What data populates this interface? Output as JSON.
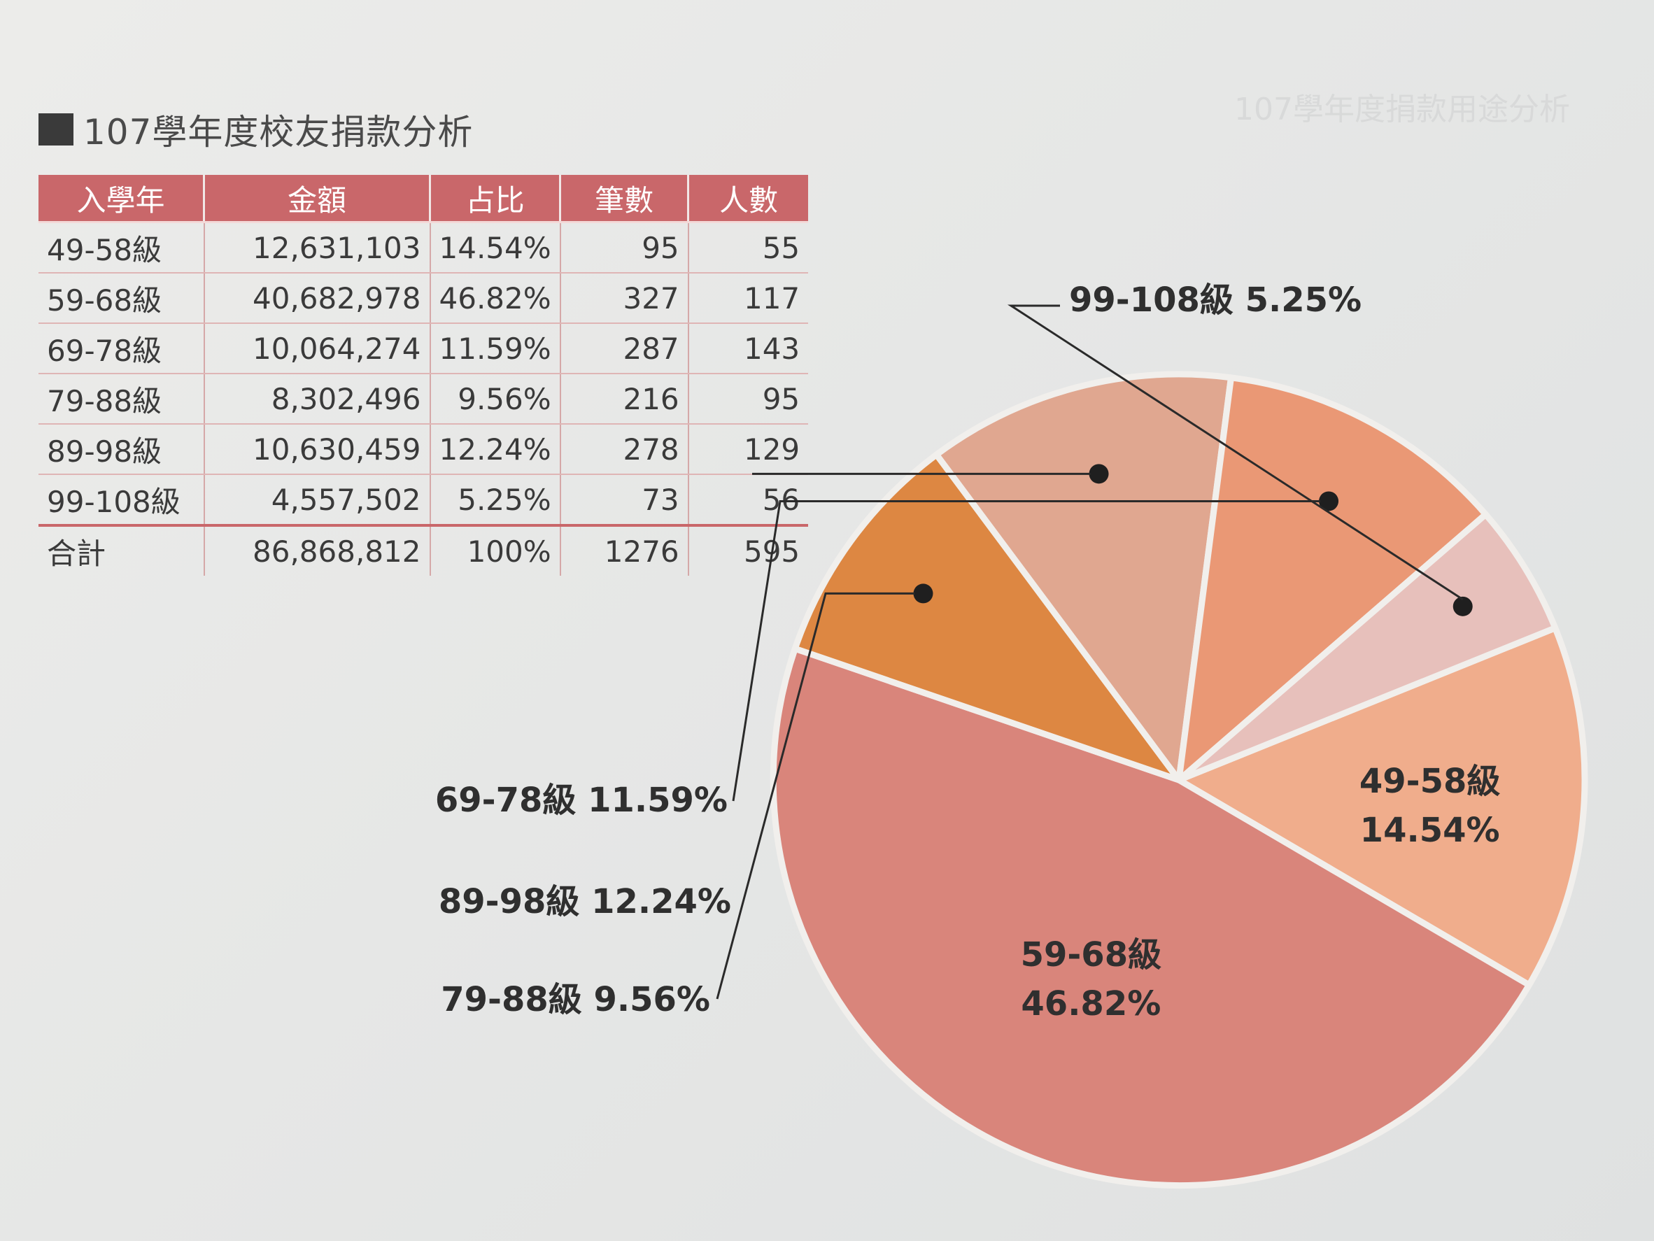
{
  "title": "107學年度校友捐款分析",
  "ghost_title": "107學年度捐款用途分析",
  "table": {
    "headers": [
      "入學年",
      "金額",
      "占比",
      "筆數",
      "人數"
    ],
    "rows": [
      [
        "49-58級",
        "12,631,103",
        "14.54%",
        "95",
        "55"
      ],
      [
        "59-68級",
        "40,682,978",
        "46.82%",
        "327",
        "117"
      ],
      [
        "69-78級",
        "10,064,274",
        "11.59%",
        "287",
        "143"
      ],
      [
        "79-88級",
        "8,302,496",
        "9.56%",
        "216",
        "95"
      ],
      [
        "89-98級",
        "10,630,459",
        "12.24%",
        "278",
        "129"
      ],
      [
        "99-108級",
        "4,557,502",
        "5.25%",
        "73",
        "56"
      ]
    ],
    "total": [
      "合計",
      "86,868,812",
      "100%",
      "1276",
      "595"
    ]
  },
  "chart_data": {
    "type": "pie",
    "slices": [
      {
        "label": "49-58級",
        "percent_label": "14.54%",
        "value": 14.54,
        "color": "#f0ad8c"
      },
      {
        "label": "59-68級",
        "percent_label": "46.82%",
        "value": 46.82,
        "color": "#d9857b"
      },
      {
        "label": "79-88級",
        "percent_label": "9.56%",
        "value": 9.56,
        "color": "#dd8742"
      },
      {
        "label": "89-98級",
        "percent_label": "12.24%",
        "value": 12.24,
        "color": "#e0a790"
      },
      {
        "label": "69-78級",
        "percent_label": "11.59%",
        "value": 11.59,
        "color": "#ea9875"
      },
      {
        "label": "99-108級",
        "percent_label": "5.25%",
        "value": 5.25,
        "color": "#e7c0bb"
      }
    ],
    "start_angle_deg": -22,
    "label_placement": {
      "49-58級": "inside",
      "59-68級": "inside",
      "79-88級": "callout-left",
      "89-98級": "callout-left",
      "69-78級": "callout-left",
      "99-108級": "callout-top"
    }
  }
}
